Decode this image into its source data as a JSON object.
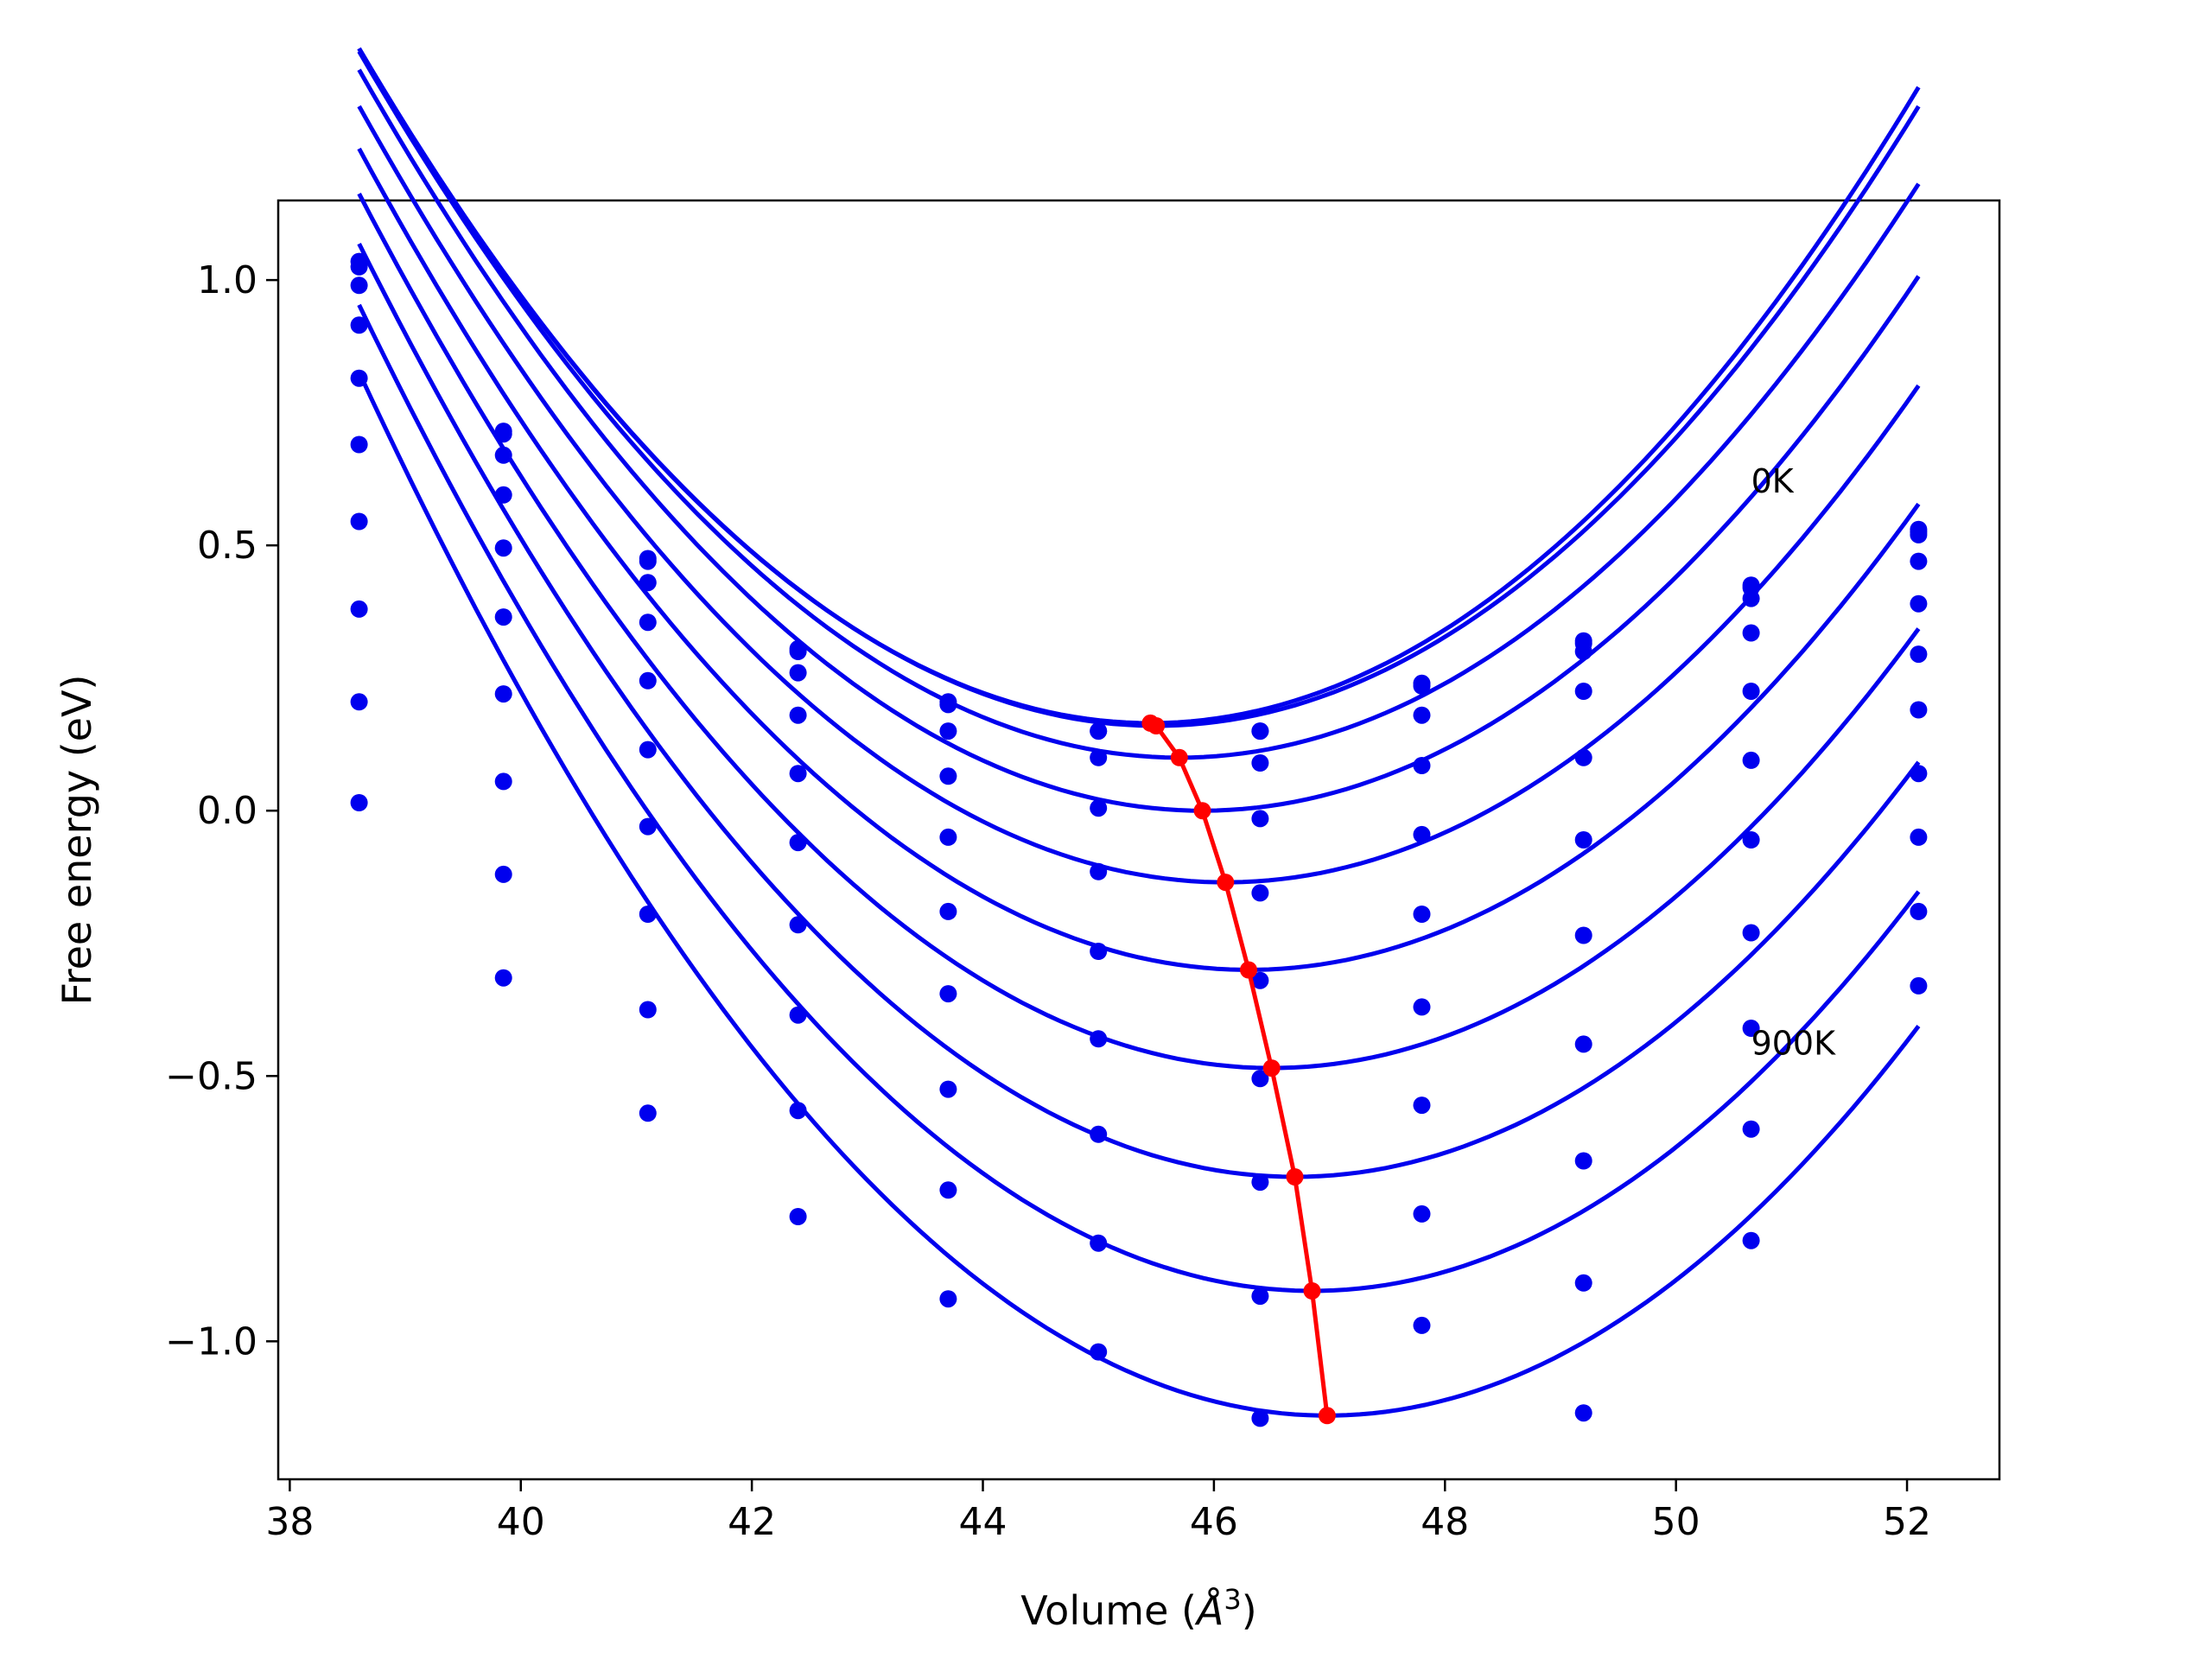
{
  "chart_data": {
    "type": "line",
    "xlabel_main": "Volume (",
    "xlabel_unit": "Å",
    "xlabel_exp": "3",
    "xlabel_close": ")",
    "ylabel": "Free energy (eV)",
    "xlim": [
      37.9,
      52.8
    ],
    "ylim": [
      -1.26,
      1.15
    ],
    "xticks": [
      38,
      40,
      42,
      44,
      46,
      48,
      50,
      52
    ],
    "xtick_labels": [
      "38",
      "40",
      "42",
      "44",
      "46",
      "48",
      "50",
      "52"
    ],
    "yticks": [
      1.0,
      0.5,
      0.0,
      -0.5,
      -1.0
    ],
    "ytick_labels": [
      "1.0",
      "0.5",
      "0.0",
      "−0.5",
      "−1.0"
    ],
    "annotations": [
      {
        "text": "0K",
        "x": 50.65,
        "y": 0.6
      },
      {
        "text": "900K",
        "x": 50.65,
        "y": -0.46
      }
    ],
    "colors": {
      "fit": "#0000ee",
      "points": "#0000ee",
      "minima": "#ff0000",
      "frame": "#000000"
    },
    "volumes": [
      38.6,
      39.85,
      41.1,
      42.4,
      43.7,
      45.0,
      46.4,
      47.8,
      49.2,
      50.65,
      52.1
    ],
    "series": [
      {
        "fit": {
          "v0": 45.45,
          "e0": 0.165,
          "a": 0.0271
        },
        "points": [
          1.035,
          0.715,
          0.475,
          0.305,
          0.205,
          0.15,
          0.15,
          0.24,
          0.32,
          0.425,
          0.53
        ]
      },
      {
        "fit": {
          "v0": 45.5,
          "e0": 0.16,
          "a": 0.0268
        },
        "points": [
          1.025,
          0.71,
          0.47,
          0.3,
          0.2,
          0.15,
          0.15,
          0.235,
          0.315,
          0.42,
          0.525
        ]
      },
      {
        "fit": {
          "v0": 45.7,
          "e0": 0.1,
          "a": 0.0264
        },
        "points": [
          0.99,
          0.67,
          0.43,
          0.26,
          0.15,
          0.1,
          0.09,
          0.18,
          0.3,
          0.4,
          0.52
        ]
      },
      {
        "fit": {
          "v0": 45.9,
          "e0": 0.0,
          "a": 0.0262
        },
        "points": [
          0.915,
          0.595,
          0.355,
          0.18,
          0.065,
          0.005,
          -0.015,
          0.085,
          0.225,
          0.335,
          0.47
        ]
      },
      {
        "fit": {
          "v0": 46.1,
          "e0": -0.135,
          "a": 0.026
        },
        "points": [
          0.815,
          0.495,
          0.245,
          0.07,
          -0.05,
          -0.115,
          -0.155,
          -0.045,
          0.1,
          0.225,
          0.39
        ]
      },
      {
        "fit": {
          "v0": 46.3,
          "e0": -0.3,
          "a": 0.0261
        },
        "points": [
          0.69,
          0.365,
          0.115,
          -0.06,
          -0.19,
          -0.265,
          -0.32,
          -0.195,
          -0.055,
          0.095,
          0.295
        ]
      },
      {
        "fit": {
          "v0": 46.5,
          "e0": -0.485,
          "a": 0.0264
        },
        "points": [
          0.545,
          0.22,
          -0.03,
          -0.215,
          -0.345,
          -0.43,
          -0.505,
          -0.37,
          -0.235,
          -0.055,
          0.19
        ]
      },
      {
        "fit": {
          "v0": 46.7,
          "e0": -0.69,
          "a": 0.0268
        },
        "points": [
          0.38,
          0.055,
          -0.195,
          -0.385,
          -0.525,
          -0.61,
          -0.7,
          -0.555,
          -0.44,
          -0.23,
          0.07
        ]
      },
      {
        "fit": {
          "v0": 46.85,
          "e0": -0.905,
          "a": 0.0273
        },
        "points": [
          0.205,
          -0.12,
          -0.375,
          -0.565,
          -0.715,
          -0.815,
          -0.915,
          -0.76,
          -0.66,
          -0.41,
          -0.05
        ]
      },
      {
        "fit": {
          "v0": 46.98,
          "e0": -1.14,
          "a": 0.028
        },
        "points": [
          0.015,
          -0.315,
          -0.57,
          -0.765,
          -0.92,
          -1.02,
          -1.145,
          -0.97,
          -0.89,
          -0.6,
          -0.19
        ]
      },
      {
        "fit": null,
        "points": [
          null,
          null,
          null,
          null,
          null,
          null,
          null,
          null,
          -1.135,
          -0.81,
          -0.33
        ]
      }
    ],
    "minima": {
      "x": [
        45.45,
        45.5,
        45.7,
        45.9,
        46.1,
        46.3,
        46.5,
        46.7,
        46.85,
        46.98
      ],
      "y": [
        0.165,
        0.16,
        0.1,
        0.0,
        -0.135,
        -0.3,
        -0.485,
        -0.69,
        -0.905,
        -1.14
      ]
    }
  }
}
